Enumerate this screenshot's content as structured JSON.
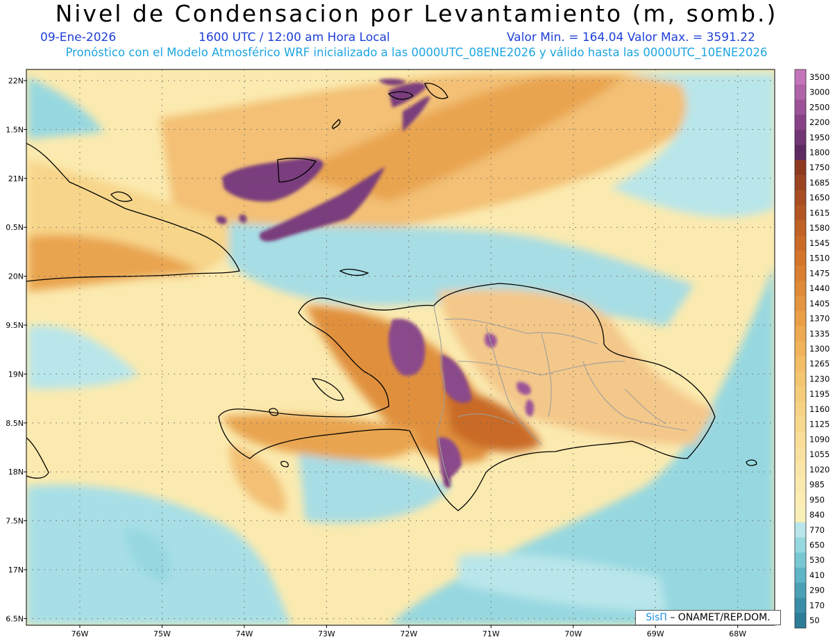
{
  "header": {
    "title": "Nivel de Condensacion por Levantamiento (m, somb.)",
    "date": "09-Ene-2026",
    "time": "1600 UTC / 12:00 am Hora Local",
    "minmax": "Valor Min. = 164.04  Valor Max. = 3591.22",
    "model_line": "Pronóstico con el Modelo Atmosférico WRF inicializado a las 0000UTC_08ENE2026 y válido hasta las  0000UTC_10ENE2026"
  },
  "map": {
    "lon_range": [
      -76.65,
      -67.55
    ],
    "lat_range": [
      6.35,
      22.1
    ],
    "lon_labels": [
      "76W",
      "75W",
      "74W",
      "73W",
      "72W",
      "71W",
      "70W",
      "69W",
      "68W"
    ],
    "lat_labels": [
      "22N",
      "1.5N",
      "21N",
      "0.5N",
      "20N",
      "9.5N",
      "19N",
      "8.5N",
      "18N",
      "7.5N",
      "17N",
      "6.5N"
    ],
    "gridline_style": "dotted"
  },
  "colorbar": {
    "labels": [
      "3500",
      "3000",
      "2500",
      "2200",
      "1950",
      "1800",
      "1750",
      "1685",
      "1650",
      "1615",
      "1580",
      "1545",
      "1510",
      "1475",
      "1440",
      "1405",
      "1370",
      "1335",
      "1300",
      "1265",
      "1230",
      "1195",
      "1160",
      "1125",
      "1090",
      "1055",
      "1020",
      "985",
      "950",
      "840",
      "770",
      "650",
      "530",
      "410",
      "290",
      "170",
      "50"
    ],
    "colors": [
      "#c474b9",
      "#b064a8",
      "#9b5298",
      "#874287",
      "#723675",
      "#5e2a62",
      "#8e3a20",
      "#9c4321",
      "#a84d22",
      "#b45623",
      "#c06125",
      "#c96a27",
      "#d3762b",
      "#da7f30",
      "#e08a37",
      "#e5953f",
      "#ea9f47",
      "#eeaa50",
      "#f0b35a",
      "#f2bd64",
      "#f4c670",
      "#f5cd7a",
      "#f6d384",
      "#f7d98e",
      "#f8de97",
      "#f9e2a0",
      "#fae6a8",
      "#fbeaaf",
      "#fcedb5",
      "#f8f0b8",
      "#b9e6ea",
      "#97d8e0",
      "#78c8d4",
      "#5db5c6",
      "#4aa1b6",
      "#3b8ea7",
      "#2d7c98"
    ]
  },
  "credit": {
    "brand": "SisΠ",
    "text": "– ONAMET/REP.DOM."
  },
  "colors": {
    "land_border": "#000000",
    "province_border": "#9e9e9e",
    "ocean_field": "#b9e6ea",
    "yellow_field": "#fbeaaf",
    "orange_field": "#e9a450",
    "purple_field": "#7a3c7d"
  }
}
